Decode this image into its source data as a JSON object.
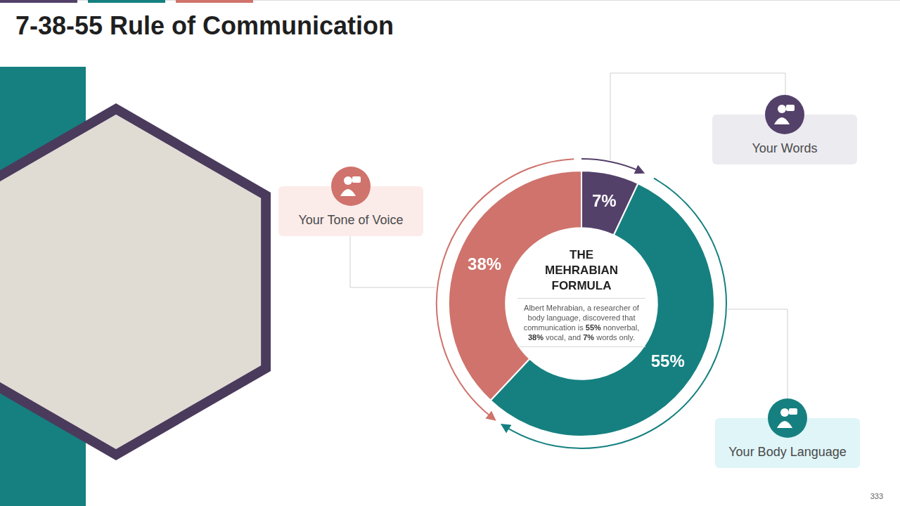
{
  "chart_data": {
    "type": "doughnut",
    "title": "7-38-55 Rule of Communication",
    "categories": [
      "Your Words",
      "Your Body Language",
      "Your Tone of Voice"
    ],
    "values": [
      7,
      55,
      38
    ],
    "value_labels": [
      "7%",
      "55%",
      "38%"
    ],
    "colors": [
      "#54416a",
      "#168080",
      "#cf736c"
    ],
    "data_labels": true,
    "legend": false,
    "center_title": "THE MEHRABIAN FORMULA",
    "center_text": "Albert Mehrabian, a researcher of body language, discovered that communication is 55% nonverbal, 38% vocal, and 7% words only.",
    "page_number": "333"
  }
}
